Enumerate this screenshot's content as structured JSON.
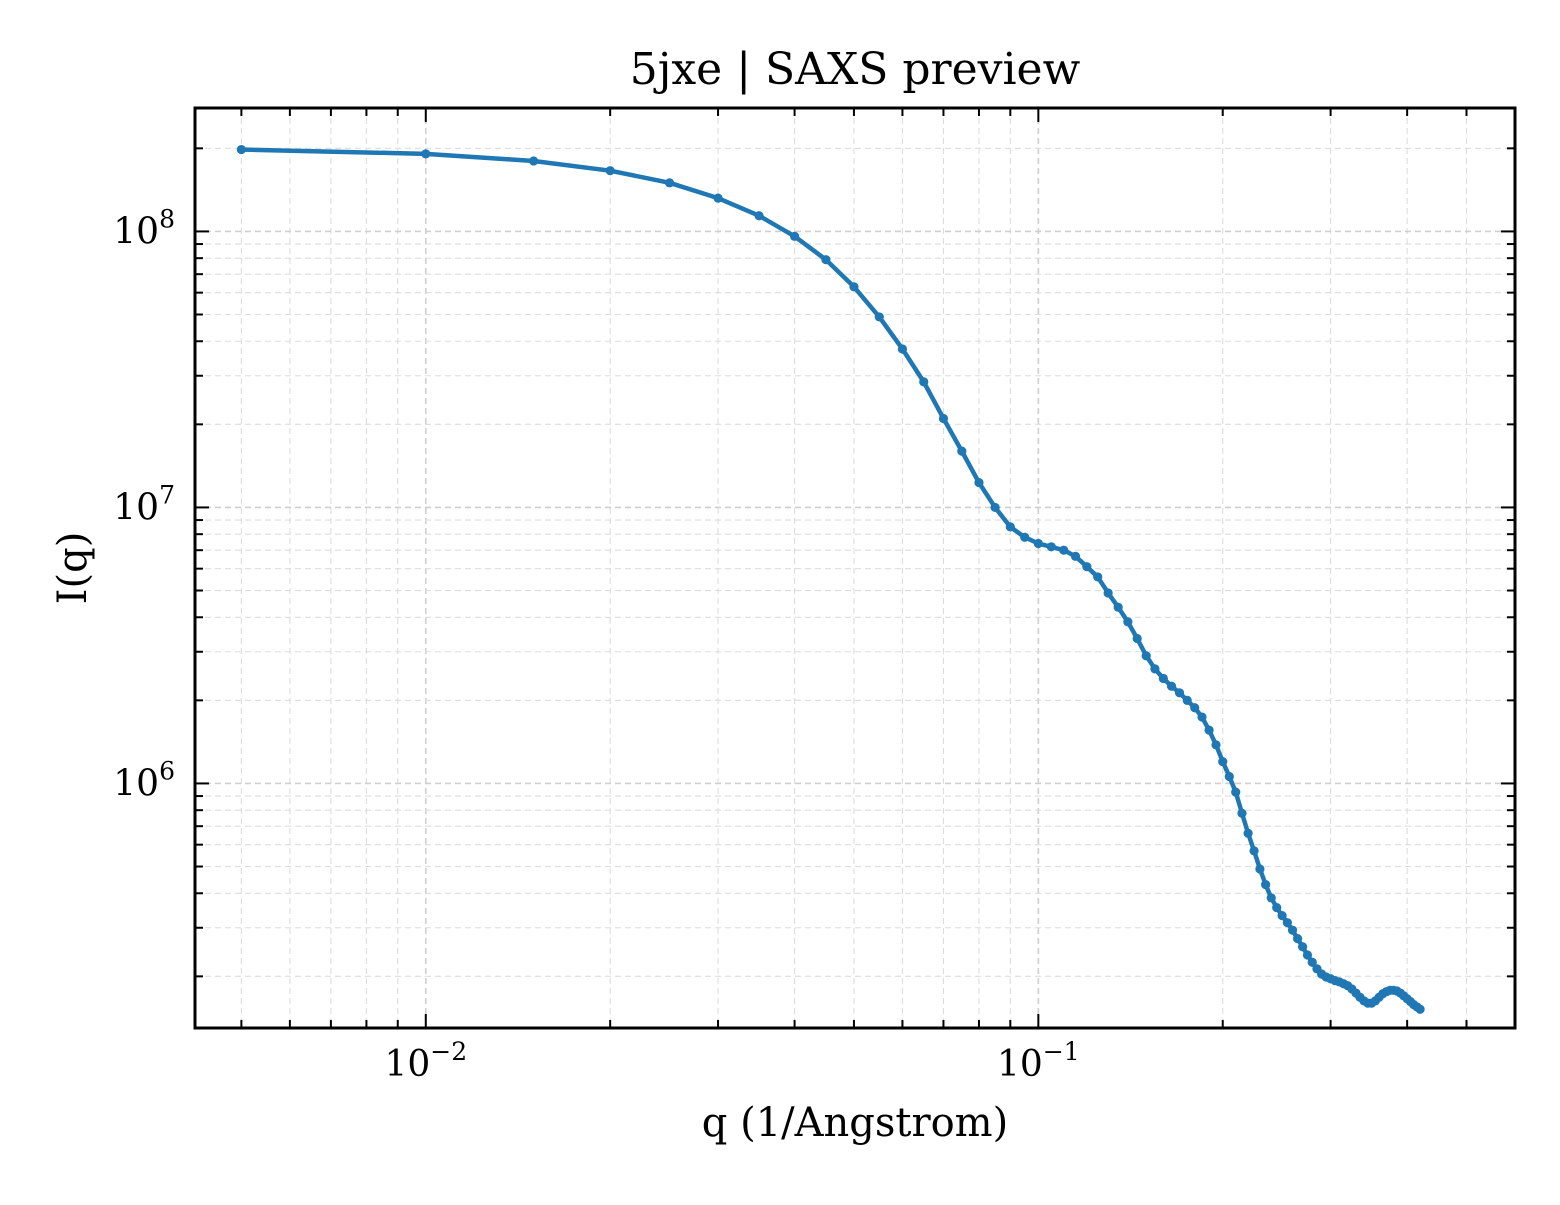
{
  "chart_data": {
    "type": "line",
    "title": "5jxe | SAXS preview",
    "xlabel": "q (1/Angstrom)",
    "ylabel": "I(q)",
    "xscale": "log",
    "yscale": "log",
    "xlim": [
      0.0042,
      0.6
    ],
    "ylim": [
      130000,
      280000000
    ],
    "x_ticks": [
      {
        "value": 0.01,
        "base": "10",
        "exp": "−2"
      },
      {
        "value": 0.1,
        "base": "10",
        "exp": "−1"
      }
    ],
    "y_ticks": [
      {
        "value": 1000000,
        "base": "10",
        "exp": "6"
      },
      {
        "value": 10000000,
        "base": "10",
        "exp": "7"
      },
      {
        "value": 100000000,
        "base": "10",
        "exp": "8"
      }
    ],
    "grid": true,
    "grid_style": "dashed",
    "line_color": "#1f77b4",
    "series": [
      {
        "markers": true,
        "points": [
          [
            0.005,
            198000000
          ],
          [
            0.01,
            191000000
          ],
          [
            0.015,
            180000000
          ],
          [
            0.02,
            166000000
          ],
          [
            0.025,
            150000000
          ],
          [
            0.03,
            132000000
          ],
          [
            0.035,
            114000000
          ],
          [
            0.04,
            96000000
          ],
          [
            0.045,
            79000000
          ],
          [
            0.05,
            63000000
          ],
          [
            0.055,
            49000000
          ],
          [
            0.06,
            37500000
          ],
          [
            0.065,
            28500000
          ],
          [
            0.07,
            21000000
          ],
          [
            0.075,
            16000000
          ],
          [
            0.08,
            12300000
          ],
          [
            0.085,
            10000000
          ],
          [
            0.09,
            8500000
          ],
          [
            0.095,
            7800000
          ],
          [
            0.1,
            7400000
          ],
          [
            0.105,
            7200000
          ],
          [
            0.11,
            7000000
          ],
          [
            0.115,
            6650000
          ],
          [
            0.12,
            6100000
          ],
          [
            0.125,
            5600000
          ],
          [
            0.13,
            4900000
          ],
          [
            0.135,
            4350000
          ],
          [
            0.14,
            3850000
          ],
          [
            0.145,
            3350000
          ],
          [
            0.15,
            2900000
          ],
          [
            0.155,
            2600000
          ],
          [
            0.16,
            2400000
          ],
          [
            0.165,
            2250000
          ],
          [
            0.17,
            2130000
          ],
          [
            0.175,
            2000000
          ],
          [
            0.18,
            1880000
          ],
          [
            0.185,
            1740000
          ],
          [
            0.19,
            1560000
          ],
          [
            0.195,
            1380000
          ],
          [
            0.2,
            1200000
          ],
          [
            0.205,
            1060000
          ],
          [
            0.21,
            930000
          ],
          [
            0.215,
            780000
          ],
          [
            0.22,
            660000
          ],
          [
            0.225,
            570000
          ],
          [
            0.23,
            490000
          ],
          [
            0.235,
            430000
          ],
          [
            0.24,
            385000
          ],
          [
            0.245,
            355000
          ],
          [
            0.25,
            332000
          ],
          [
            0.255,
            313000
          ],
          [
            0.26,
            294000
          ],
          [
            0.265,
            274000
          ],
          [
            0.27,
            256000
          ],
          [
            0.275,
            239000
          ],
          [
            0.28,
            225000
          ],
          [
            0.285,
            213000
          ],
          [
            0.29,
            204000
          ],
          [
            0.295,
            199000
          ],
          [
            0.3,
            196000
          ],
          [
            0.305,
            193000
          ],
          [
            0.31,
            191000
          ],
          [
            0.315,
            188000
          ],
          [
            0.32,
            185000
          ],
          [
            0.325,
            180000
          ],
          [
            0.33,
            174000
          ],
          [
            0.335,
            168000
          ],
          [
            0.34,
            163000
          ],
          [
            0.345,
            160000
          ],
          [
            0.35,
            160000
          ],
          [
            0.355,
            163000
          ],
          [
            0.36,
            168000
          ],
          [
            0.365,
            173000
          ],
          [
            0.37,
            176000
          ],
          [
            0.375,
            178000
          ],
          [
            0.38,
            178000
          ],
          [
            0.385,
            177000
          ],
          [
            0.39,
            174000
          ],
          [
            0.395,
            170000
          ],
          [
            0.4,
            166000
          ],
          [
            0.405,
            162000
          ],
          [
            0.41,
            158000
          ],
          [
            0.415,
            155000
          ],
          [
            0.42,
            152000
          ]
        ]
      }
    ]
  }
}
